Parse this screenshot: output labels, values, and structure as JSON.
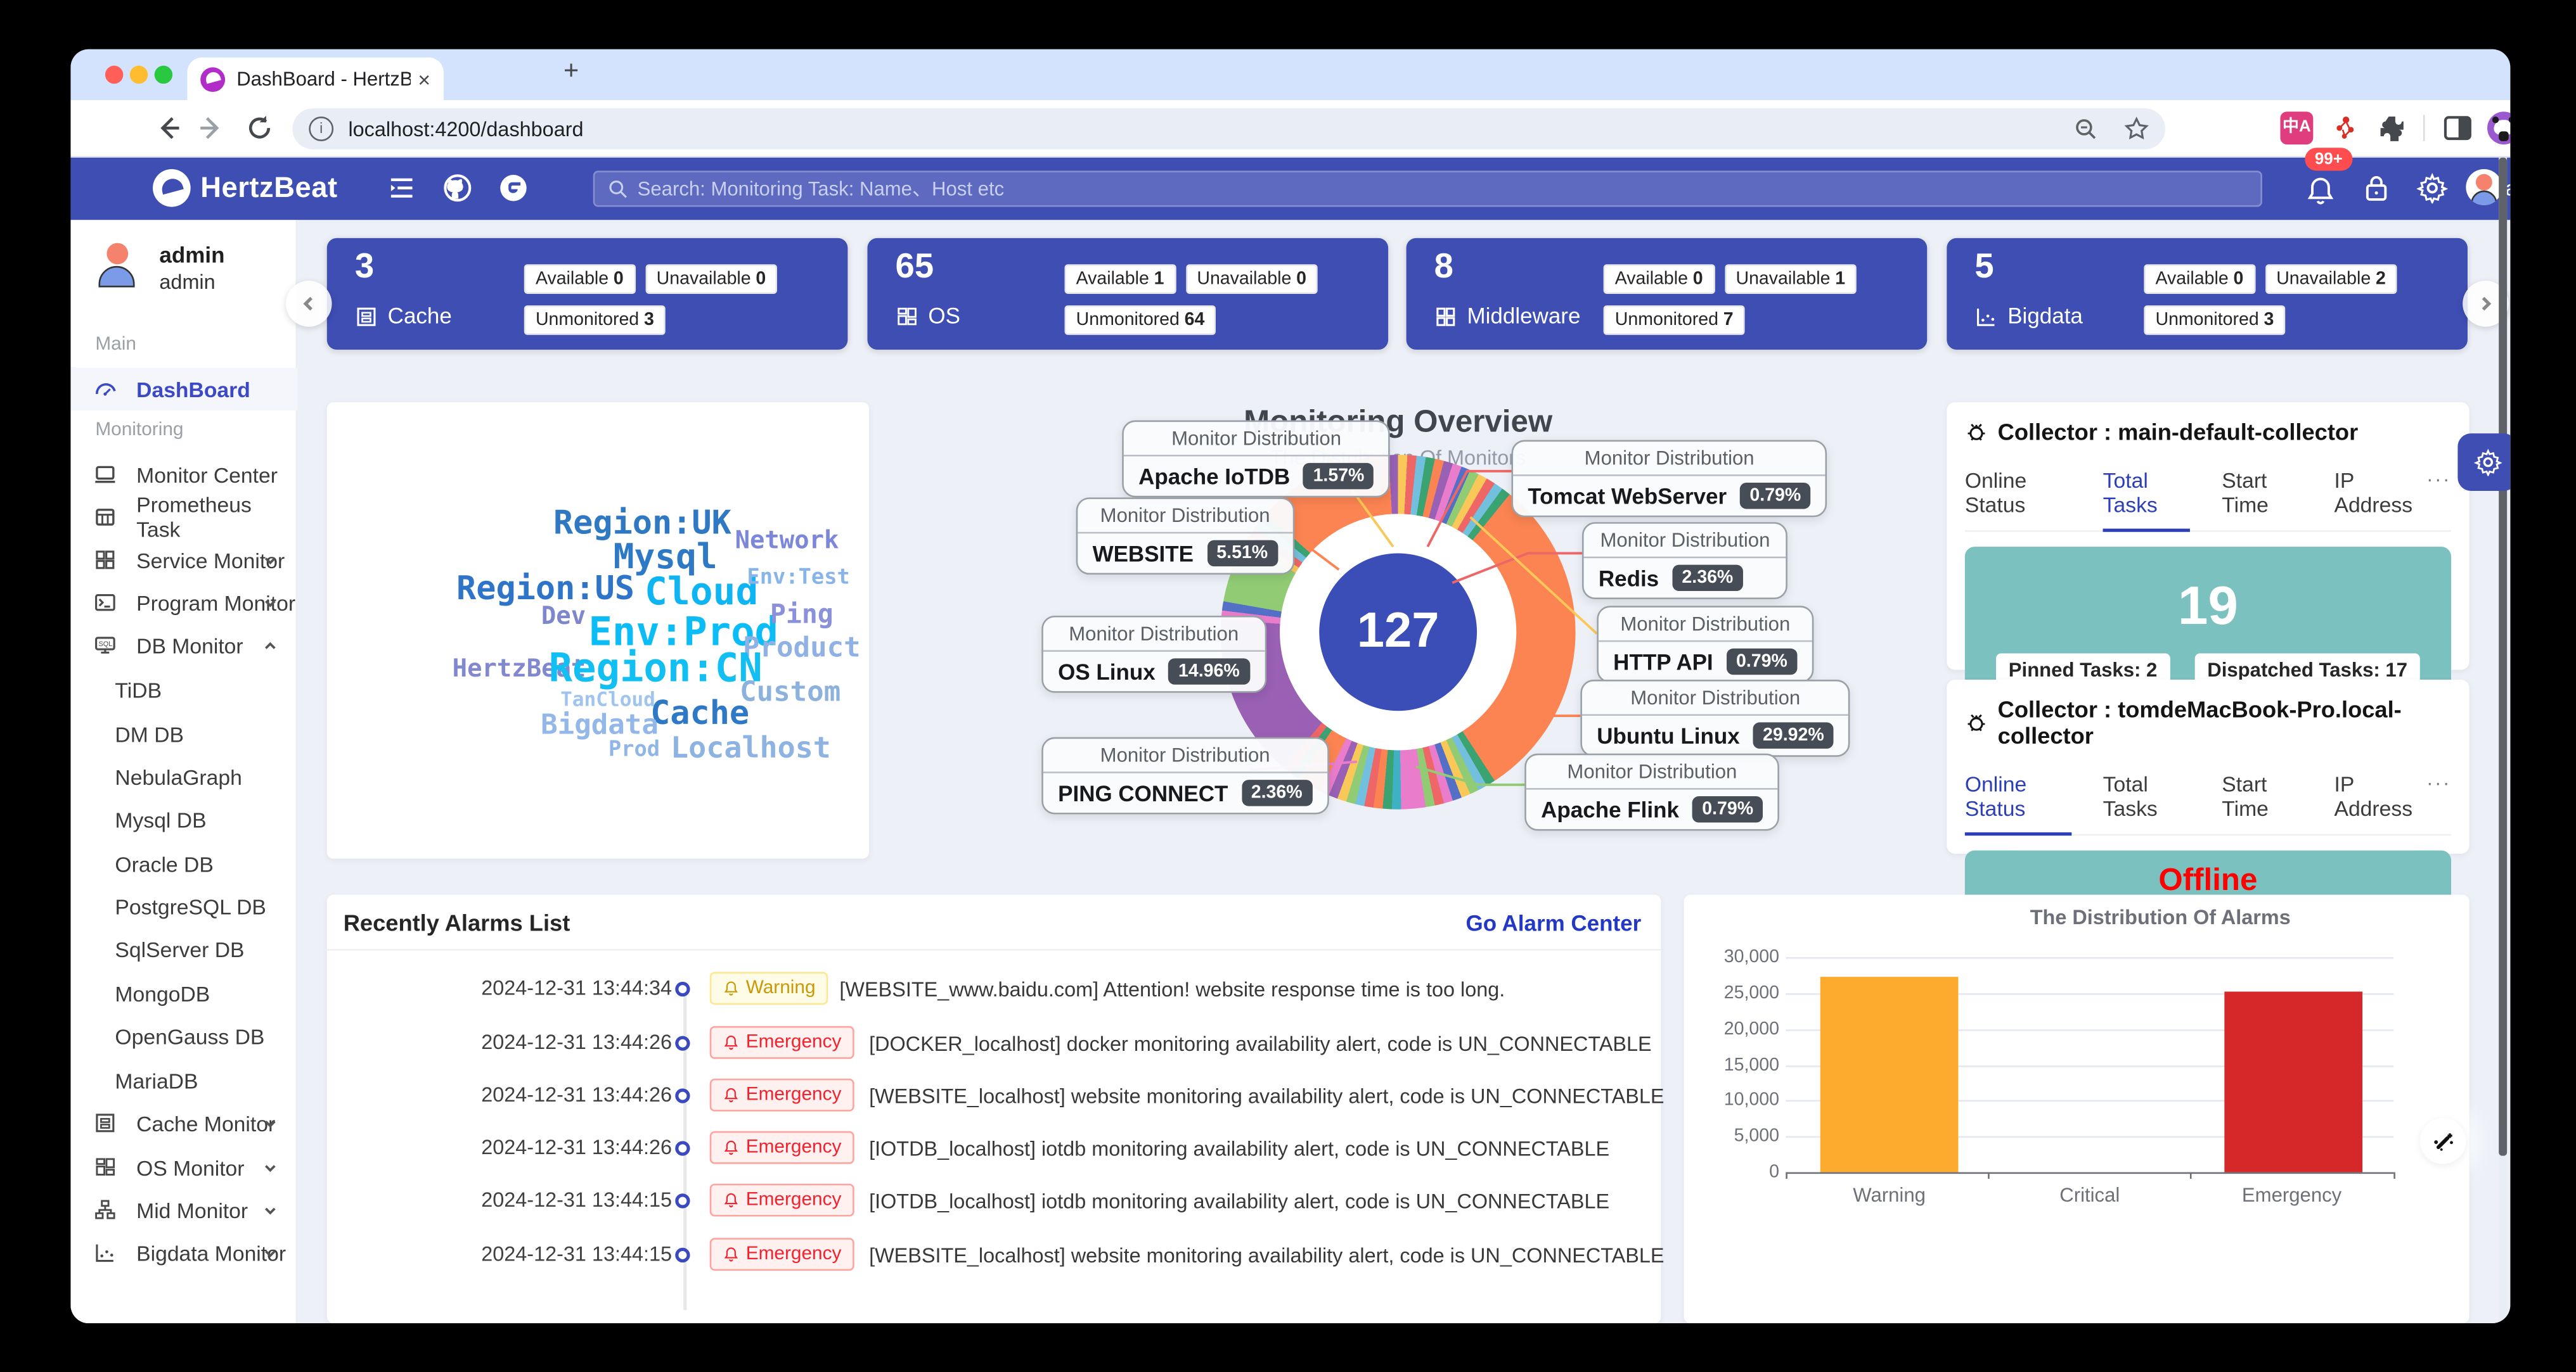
{
  "browser": {
    "tab_title": "DashBoard - HertzBeat",
    "url": "localhost:4200/dashboard",
    "new_tab": "+",
    "close": "×"
  },
  "navbar": {
    "brand": "HertzBeat",
    "search_placeholder": "Search:  Monitoring Task: Name、Host etc",
    "notification_badge": "99+",
    "username": "admin"
  },
  "sidebar": {
    "user_name": "admin",
    "user_role": "admin",
    "label_main": "Main",
    "label_monitoring": "Monitoring",
    "dashboard": "DashBoard",
    "items": [
      "Monitor Center",
      "Prometheus Task",
      "Service Monitor",
      "Program Monitor",
      "DB Monitor"
    ],
    "db_children": [
      "TiDB",
      "DM DB",
      "NebulaGraph",
      "Mysql DB",
      "Oracle DB",
      "PostgreSQL DB",
      "SqlServer DB",
      "MongoDB",
      "OpenGauss DB",
      "MariaDB"
    ],
    "more_items": [
      "Cache Monitor",
      "OS Monitor",
      "Mid Monitor",
      "Bigdata Monitor"
    ]
  },
  "stat_cards": [
    {
      "count": "3",
      "label": "Cache",
      "badges": [
        {
          "name": "Available",
          "value": "0"
        },
        {
          "name": "Unavailable",
          "value": "0"
        },
        {
          "name": "Unmonitored",
          "value": "3"
        }
      ]
    },
    {
      "count": "65",
      "label": "OS",
      "badges": [
        {
          "name": "Available",
          "value": "1"
        },
        {
          "name": "Unavailable",
          "value": "0"
        },
        {
          "name": "Unmonitored",
          "value": "64"
        }
      ]
    },
    {
      "count": "8",
      "label": "Middleware",
      "badges": [
        {
          "name": "Available",
          "value": "0"
        },
        {
          "name": "Unavailable",
          "value": "1"
        },
        {
          "name": "Unmonitored",
          "value": "7"
        }
      ]
    },
    {
      "count": "5",
      "label": "Bigdata",
      "badges": [
        {
          "name": "Available",
          "value": "0"
        },
        {
          "name": "Unavailable",
          "value": "2"
        },
        {
          "name": "Unmonitored",
          "value": "3"
        }
      ]
    }
  ],
  "wordcloud": {
    "words": [
      "Region:UK",
      "Network",
      "Mysql",
      "Region:US",
      "Cloud",
      "Env:Test",
      "Dev",
      "Env:Prod",
      "Ping",
      "Product",
      "HertzBeat",
      "Region:CN",
      "Custom",
      "TanCloud",
      "Cache",
      "Bigdata",
      "Prod",
      "Localhost"
    ]
  },
  "overview": {
    "title": "Monitoring Overview",
    "subtitle": "The Distribution Of Monitors",
    "total": "127",
    "tooltip_header": "Monitor Distribution",
    "tooltips": [
      {
        "name": "Apache IoTDB",
        "value": "1.57%"
      },
      {
        "name": "WEBSITE",
        "value": "5.51%"
      },
      {
        "name": "OS Linux",
        "value": "14.96%"
      },
      {
        "name": "PING CONNECT",
        "value": "2.36%"
      },
      {
        "name": "Tomcat WebServer",
        "value": "0.79%"
      },
      {
        "name": "Redis",
        "value": "2.36%"
      },
      {
        "name": "HTTP API",
        "value": "0.79%"
      },
      {
        "name": "Ubuntu Linux",
        "value": "29.92%"
      },
      {
        "name": "Apache Flink",
        "value": "0.79%"
      }
    ]
  },
  "collectors": [
    {
      "title": "Collector : main-default-collector",
      "tabs": [
        "Online Status",
        "Total Tasks",
        "Start Time",
        "IP Address"
      ],
      "more": "···",
      "active_tab": "Total Tasks",
      "total_tasks": "19",
      "pinned": "Pinned Tasks: 2",
      "dispatched": "Dispatched Tasks: 17"
    },
    {
      "title": "Collector : tomdeMacBook-Pro.local-collector",
      "tabs": [
        "Online Status",
        "Total Tasks",
        "Start Time",
        "IP Address"
      ],
      "more": "···",
      "active_tab": "Online Status",
      "status": "Offline"
    }
  ],
  "alarms": {
    "title": "Recently Alarms List",
    "link": "Go Alarm Center",
    "rows": [
      {
        "time": "2024-12-31 13:44:34",
        "level": "Warning",
        "message": "[WEBSITE_www.baidu.com] Attention! website response time is too long."
      },
      {
        "time": "2024-12-31 13:44:26",
        "level": "Emergency",
        "message": "[DOCKER_localhost] docker monitoring availability alert, code is UN_CONNECTABLE"
      },
      {
        "time": "2024-12-31 13:44:26",
        "level": "Emergency",
        "message": "[WEBSITE_localhost] website monitoring availability alert, code is UN_CONNECTABLE"
      },
      {
        "time": "2024-12-31 13:44:26",
        "level": "Emergency",
        "message": "[IOTDB_localhost] iotdb monitoring availability alert, code is UN_CONNECTABLE"
      },
      {
        "time": "2024-12-31 13:44:15",
        "level": "Emergency",
        "message": "[IOTDB_localhost] iotdb monitoring availability alert, code is UN_CONNECTABLE"
      },
      {
        "time": "2024-12-31 13:44:15",
        "level": "Emergency",
        "message": "[WEBSITE_localhost] website monitoring availability alert, code is UN_CONNECTABLE"
      }
    ]
  },
  "chart_data": [
    {
      "type": "pie",
      "title": "Monitoring Overview",
      "subtitle": "The Distribution Of Monitors",
      "series_name": "Monitor Distribution",
      "total": 127,
      "unit": "%",
      "data": [
        {
          "name": "Ubuntu Linux",
          "value": 29.92
        },
        {
          "name": "OS Linux",
          "value": 14.96
        },
        {
          "name": "WEBSITE",
          "value": 5.51
        },
        {
          "name": "Redis",
          "value": 2.36
        },
        {
          "name": "PING CONNECT",
          "value": 2.36
        },
        {
          "name": "Apache IoTDB",
          "value": 1.57
        },
        {
          "name": "Tomcat WebServer",
          "value": 0.79
        },
        {
          "name": "HTTP API",
          "value": 0.79
        },
        {
          "name": "Apache Flink",
          "value": 0.79
        }
      ],
      "legend_position": "none"
    },
    {
      "type": "bar",
      "title": "The Distribution Of Alarms",
      "categories": [
        "Warning",
        "Critical",
        "Emergency"
      ],
      "values": [
        27200,
        0,
        25200
      ],
      "bar_colors": [
        "#fcab2f",
        "#bfbfbf",
        "#d62828"
      ],
      "xlabel": "",
      "ylabel": "",
      "ylim": [
        0,
        30000
      ],
      "yticks": [
        "30,000",
        "25,000",
        "20,000",
        "15,000",
        "10,000",
        "5,000",
        "0"
      ],
      "grid": true,
      "legend_position": "none"
    }
  ],
  "colors": {
    "accent_blue": "#3e4eb3",
    "link_blue": "#2438c8",
    "teal_panel": "#7ac1bf",
    "offline_red": "#ff0000",
    "warning": "#fcab2f",
    "emergency": "#d62828",
    "donut_center": "#3b4eb8"
  }
}
